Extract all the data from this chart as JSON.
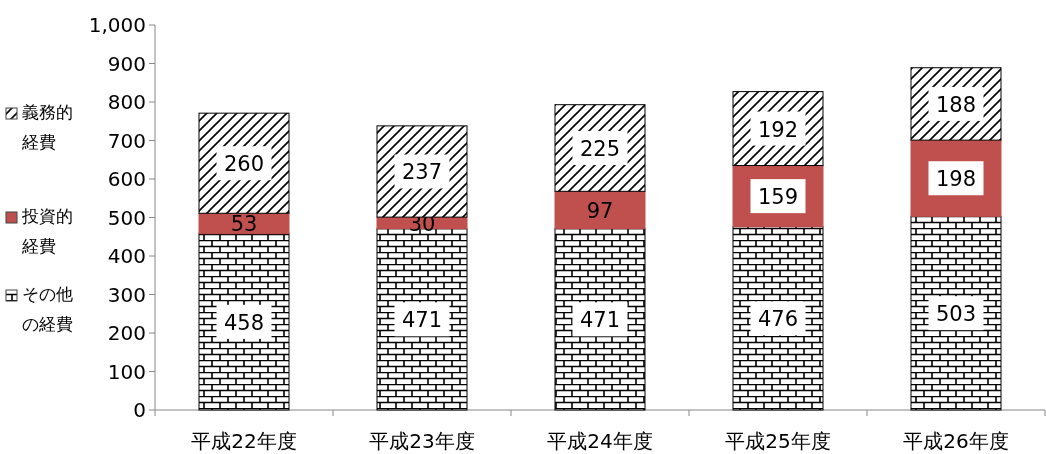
{
  "chart_data": {
    "type": "bar",
    "stacked": true,
    "categories": [
      "平成22年度",
      "平成23年度",
      "平成24年度",
      "平成25年度",
      "平成26年度"
    ],
    "series": [
      {
        "name": "その他の経費",
        "color": "#000000",
        "values": [
          458,
          471,
          471,
          476,
          503
        ]
      },
      {
        "name": "投資的経費",
        "color": "#c0504d",
        "values": [
          53,
          30,
          97,
          159,
          198
        ]
      },
      {
        "name": "義務的経費",
        "color": "#000000",
        "values": [
          260,
          237,
          225,
          192,
          188
        ]
      }
    ],
    "ylim": [
      0,
      1000
    ],
    "yticks": [
      0,
      100,
      200,
      300,
      400,
      500,
      600,
      700,
      800,
      900,
      {
        "value": 1000,
        "label": "1,000"
      }
    ],
    "data_labels": true,
    "legend": "left",
    "grid": false
  }
}
